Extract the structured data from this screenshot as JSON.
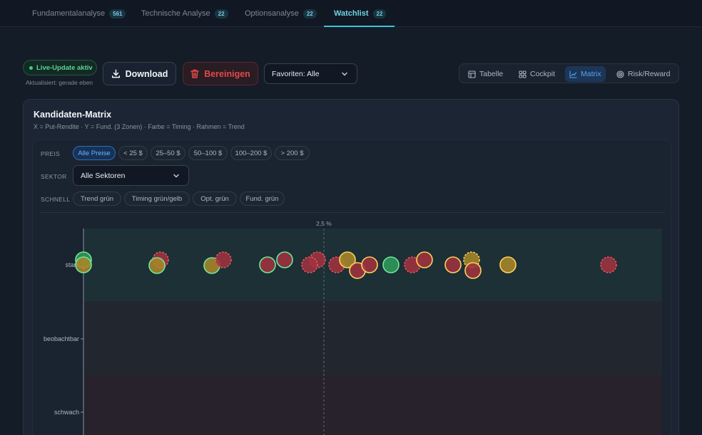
{
  "tabs": [
    {
      "label": "Fundamentalanalyse",
      "count": "561"
    },
    {
      "label": "Technische Analyse",
      "count": "22"
    },
    {
      "label": "Optionsanalyse",
      "count": "22"
    },
    {
      "label": "Watchlist",
      "count": "22"
    }
  ],
  "toolbar": {
    "live_label": "Live-Update aktiv",
    "updated_label": "Aktualisiert: gerade eben",
    "download_label": "Download",
    "clean_label": "Bereinigen",
    "favorites_value": "Favoriten: Alle"
  },
  "views": [
    {
      "label": "Tabelle",
      "icon": "table-icon"
    },
    {
      "label": "Cockpit",
      "icon": "grid-icon"
    },
    {
      "label": "Matrix",
      "icon": "chart-icon"
    },
    {
      "label": "Risk/Reward",
      "icon": "target-icon"
    }
  ],
  "card": {
    "title": "Kandidaten-Matrix",
    "subtitle": "X = Put-Rendite · Y = Fund. (3 Zonen) · Farbe = Timing · Rahmen = Trend"
  },
  "filters": {
    "price_label": "PREIS",
    "price_chips": [
      "Alle Preise",
      "< 25 $",
      "25–50 $",
      "50–100 $",
      "100–200 $",
      "> 200 $"
    ],
    "sector_label": "SEKTOR",
    "sector_value": "Alle Sektoren",
    "quick_label": "SCHNELL",
    "quick_chips": [
      "Trend grün",
      "Timing grün/gelb",
      "Opt. grün",
      "Fund. grün"
    ]
  },
  "colors": {
    "green": "#3fb06a",
    "yellow": "#c29a2c",
    "red": "#b83b47",
    "accent": "#38c6db"
  },
  "chart_data": {
    "type": "scatter",
    "title": "Kandidaten-Matrix",
    "y_categories": [
      "stark",
      "beobachtbar",
      "schwach"
    ],
    "reference_line": {
      "x_label": "2,5 %"
    },
    "series": [
      {
        "y": "stark",
        "fill": "green",
        "ring": "green",
        "dashed": false
      },
      {
        "y": "stark",
        "fill": "yellow",
        "ring": "green",
        "dashed": false
      },
      {
        "y": "stark",
        "fill": "red",
        "ring": "red",
        "dashed": true
      },
      {
        "y": "stark",
        "fill": "yellow",
        "ring": "green",
        "dashed": false
      },
      {
        "y": "stark",
        "fill": "yellow",
        "ring": "green",
        "dashed": false
      },
      {
        "y": "stark",
        "fill": "red",
        "ring": "red",
        "dashed": true
      },
      {
        "y": "stark",
        "fill": "red",
        "ring": "green",
        "dashed": false
      },
      {
        "y": "stark",
        "fill": "red",
        "ring": "green",
        "dashed": false
      },
      {
        "y": "stark",
        "fill": "red",
        "ring": "red",
        "dashed": true
      },
      {
        "y": "stark",
        "fill": "red",
        "ring": "red",
        "dashed": true
      },
      {
        "y": "stark",
        "fill": "red",
        "ring": "red",
        "dashed": true
      },
      {
        "y": "stark",
        "fill": "yellow",
        "ring": "yellow",
        "dashed": false
      },
      {
        "y": "stark",
        "fill": "red",
        "ring": "yellow",
        "dashed": false
      },
      {
        "y": "stark",
        "fill": "red",
        "ring": "yellow",
        "dashed": false
      },
      {
        "y": "stark",
        "fill": "green",
        "ring": "green",
        "dashed": false
      },
      {
        "y": "stark",
        "fill": "red",
        "ring": "red",
        "dashed": true
      },
      {
        "y": "stark",
        "fill": "red",
        "ring": "yellow",
        "dashed": false
      },
      {
        "y": "stark",
        "fill": "red",
        "ring": "yellow",
        "dashed": false
      },
      {
        "y": "stark",
        "fill": "yellow",
        "ring": "yellow",
        "dashed": true
      },
      {
        "y": "stark",
        "fill": "red",
        "ring": "yellow",
        "dashed": false
      },
      {
        "y": "stark",
        "fill": "yellow",
        "ring": "yellow",
        "dashed": false
      },
      {
        "y": "stark",
        "fill": "red",
        "ring": "red",
        "dashed": true
      }
    ]
  }
}
